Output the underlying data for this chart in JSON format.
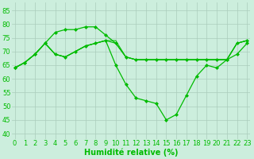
{
  "background_color": "#cceedd",
  "grid_color": "#aaccbb",
  "line_color": "#00bb00",
  "marker_color": "#00bb00",
  "xlabel": "Humidité relative (%)",
  "xlabel_fontsize": 7,
  "tick_fontsize": 6,
  "ylim": [
    38,
    88
  ],
  "xlim": [
    -0.3,
    23.3
  ],
  "yticks": [
    40,
    45,
    50,
    55,
    60,
    65,
    70,
    75,
    80,
    85
  ],
  "xticks": [
    0,
    1,
    2,
    3,
    4,
    5,
    6,
    7,
    8,
    9,
    10,
    11,
    12,
    13,
    14,
    15,
    16,
    17,
    18,
    19,
    20,
    21,
    22,
    23
  ],
  "series": [
    {
      "x": [
        0,
        1,
        2,
        3,
        4,
        5,
        6,
        7,
        8,
        9,
        10,
        11,
        12,
        13,
        14,
        15,
        16,
        17,
        18,
        19,
        20,
        21,
        22,
        23
      ],
      "y": [
        64,
        66,
        69,
        73,
        77,
        78,
        78,
        79,
        79,
        76,
        73,
        68,
        67,
        67,
        67,
        67,
        67,
        67,
        67,
        67,
        67,
        67,
        73,
        74
      ],
      "marker": "D",
      "markersize": 2.0,
      "linewidth": 0.9,
      "zorder": 3
    },
    {
      "x": [
        0,
        1,
        2,
        3,
        4,
        5,
        6,
        7,
        8,
        9,
        10,
        11,
        12,
        13,
        14,
        15,
        16,
        17,
        18,
        19,
        20,
        21,
        22,
        23
      ],
      "y": [
        64,
        66,
        69,
        73,
        69,
        68,
        70,
        72,
        73,
        74,
        65,
        58,
        53,
        52,
        51,
        45,
        47,
        54,
        61,
        65,
        64,
        67,
        69,
        73
      ],
      "marker": "D",
      "markersize": 2.0,
      "linewidth": 0.9,
      "zorder": 3
    },
    {
      "x": [
        0,
        1,
        2,
        3,
        4,
        5,
        6,
        7,
        8,
        9,
        10,
        11,
        12,
        13,
        14,
        15,
        16,
        17,
        18,
        19,
        20,
        21,
        22,
        23
      ],
      "y": [
        64,
        66,
        69,
        73,
        69,
        68,
        70,
        72,
        73,
        74,
        73,
        68,
        67,
        67,
        67,
        67,
        67,
        67,
        67,
        67,
        67,
        67,
        73,
        74
      ],
      "marker": null,
      "markersize": 0,
      "linewidth": 0.8,
      "zorder": 2
    },
    {
      "x": [
        0,
        1,
        2,
        3,
        4,
        5,
        6,
        7,
        8,
        9,
        10,
        11,
        12,
        13,
        14,
        15,
        16,
        17,
        18,
        19,
        20,
        21,
        22,
        23
      ],
      "y": [
        64,
        66,
        69,
        73,
        69,
        68,
        70,
        72,
        73,
        74,
        74,
        68,
        67,
        67,
        67,
        67,
        67,
        67,
        67,
        67,
        67,
        67,
        73,
        74
      ],
      "marker": null,
      "markersize": 0,
      "linewidth": 0.7,
      "zorder": 2
    }
  ]
}
